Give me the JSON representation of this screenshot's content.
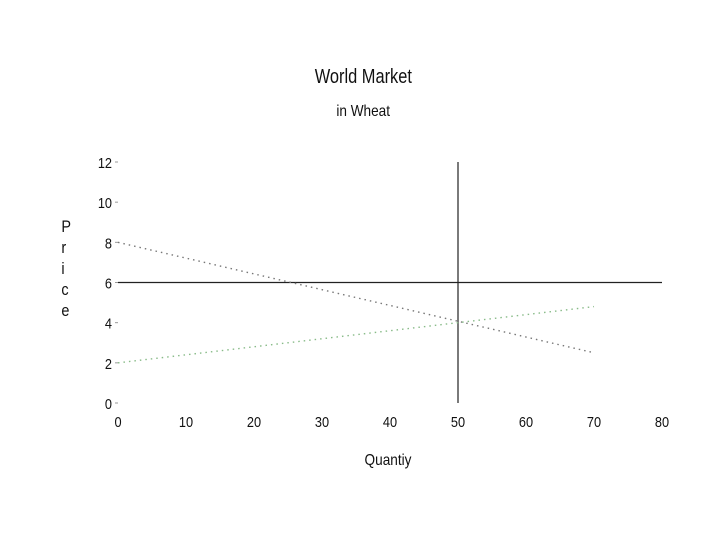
{
  "chart_data": {
    "type": "line",
    "title": "World Market",
    "subtitle": "in Wheat",
    "xlabel": "Quantiy",
    "ylabel_chars": [
      "P",
      "r",
      "i",
      "c",
      "e"
    ],
    "xlim": [
      0,
      80
    ],
    "ylim": [
      0,
      12
    ],
    "x_ticks": [
      0,
      10,
      20,
      30,
      40,
      50,
      60,
      70,
      80
    ],
    "y_ticks": [
      0,
      2,
      4,
      6,
      8,
      10,
      12
    ],
    "grid": false,
    "series": [
      {
        "style": "dotted",
        "color": "#777777",
        "x": [
          0,
          70
        ],
        "y": [
          8,
          2.5
        ]
      },
      {
        "style": "dotted",
        "color": "#88bb88",
        "x": [
          0,
          70
        ],
        "y": [
          2,
          4.8
        ]
      }
    ],
    "reference_lines": [
      {
        "orientation": "horizontal",
        "y": 6,
        "x_from": 0,
        "x_to": 80
      },
      {
        "orientation": "vertical",
        "x": 50,
        "y_from": 0,
        "y_to": 12
      }
    ]
  }
}
